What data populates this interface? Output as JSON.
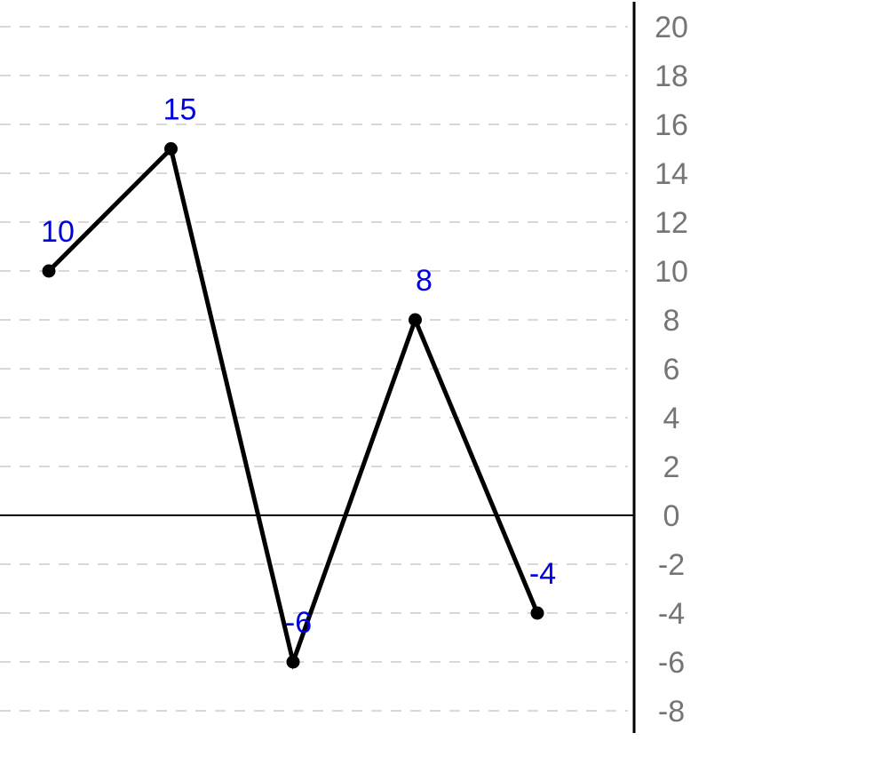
{
  "chart_data": {
    "type": "line",
    "title": "",
    "xlabel": "",
    "ylabel": "",
    "x": [
      1,
      2,
      3,
      4,
      5
    ],
    "values": [
      10,
      15,
      -6,
      8,
      -4
    ],
    "data_labels": [
      "10",
      "15",
      "-6",
      "8",
      "-4"
    ],
    "ylim": [
      -8,
      20
    ],
    "yticks": [
      20,
      18,
      16,
      14,
      12,
      10,
      8,
      6,
      4,
      2,
      0,
      -2,
      -4,
      -6,
      -8
    ],
    "ytick_labels": [
      "20",
      "18",
      "16",
      "14",
      "12",
      "10",
      "8",
      "6",
      "4",
      "2",
      "0",
      "-2",
      "-4",
      "-6",
      "-8"
    ],
    "y_axis_side": "right",
    "grid": "horizontal-dashed",
    "legend": "none"
  },
  "colors": {
    "line": "#000000",
    "marker": "#000000",
    "data_label": "#0000dd",
    "tick_label": "#757575",
    "grid": "#cccccc",
    "axis": "#000000",
    "zero_line": "#000000"
  }
}
